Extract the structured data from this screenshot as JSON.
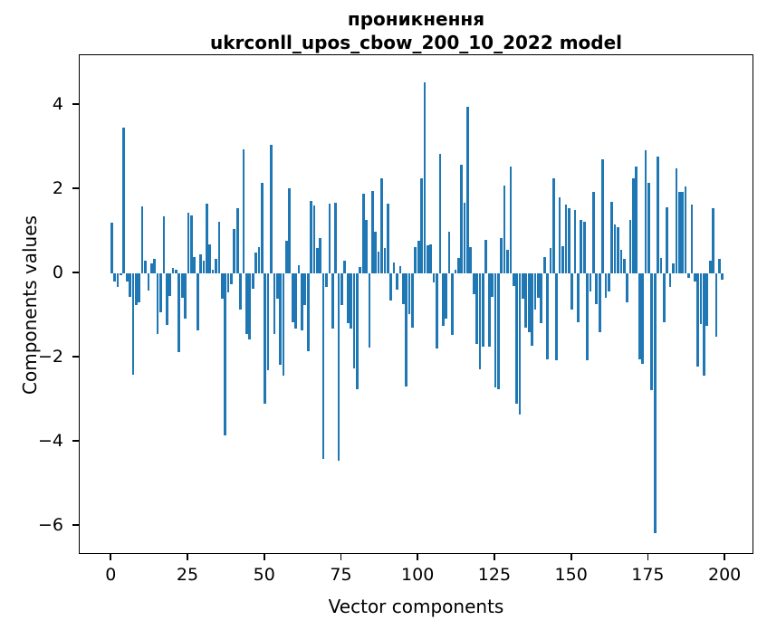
{
  "figure": {
    "title_line1": "проникнення",
    "title_line2": "ukrconll_upos_cbow_200_10_2022 model",
    "xlabel": "Vector components",
    "ylabel": "Components values"
  },
  "chart_data": {
    "type": "bar",
    "title": "проникнення — ukrconll_upos_cbow_200_10_2022 model",
    "xlabel": "Vector components",
    "ylabel": "Components values",
    "bar_color": "#1f77b4",
    "spine_color": "#000000",
    "grid": false,
    "legend": null,
    "x_ticks": [
      0,
      25,
      50,
      75,
      100,
      125,
      150,
      175,
      200
    ],
    "y_ticks": [
      4,
      2,
      0,
      -2,
      -4,
      -6
    ],
    "xlim": [
      -10.4,
      209.4
    ],
    "ylim": [
      -6.69,
      5.19
    ],
    "bar_width": 0.8,
    "x_start_index": 0,
    "values": [
      1.21,
      -0.18,
      -0.31,
      -0.05,
      3.47,
      -0.2,
      -0.55,
      -2.4,
      -0.75,
      -0.68,
      1.6,
      0.31,
      -0.4,
      0.24,
      0.35,
      -1.43,
      -0.93,
      1.35,
      -1.22,
      -0.54,
      0.14,
      0.1,
      -1.86,
      -0.58,
      -1.07,
      1.45,
      1.38,
      0.38,
      -1.35,
      0.45,
      0.3,
      1.65,
      0.7,
      0.08,
      0.35,
      1.22,
      -0.6,
      -3.85,
      -0.45,
      -0.25,
      1.06,
      1.56,
      -0.85,
      2.95,
      -1.43,
      -1.57,
      -0.36,
      0.49,
      0.63,
      2.15,
      -3.1,
      -2.3,
      3.05,
      -1.43,
      -0.6,
      -2.18,
      -2.43,
      0.78,
      2.02,
      -1.15,
      -1.32,
      0.2,
      -1.36,
      -0.75,
      -1.85,
      1.72,
      1.62,
      0.6,
      0.85,
      -4.4,
      -0.33,
      1.67,
      -1.32,
      1.69,
      -4.45,
      -0.75,
      0.3,
      -1.18,
      -1.32,
      -2.25,
      -2.75,
      0.15,
      1.9,
      1.27,
      -1.77,
      1.97,
      1.0,
      0.52,
      2.26,
      0.61,
      1.67,
      -0.65,
      0.26,
      -0.38,
      0.17,
      -0.72,
      -2.68,
      -0.97,
      -1.29,
      0.63,
      0.78,
      2.27,
      4.55,
      0.67,
      0.69,
      -0.22,
      -1.79,
      2.85,
      -1.25,
      -1.07,
      0.99,
      -1.47,
      0.08,
      0.36,
      2.59,
      1.68,
      3.96,
      0.63,
      -0.5,
      -1.68,
      -2.28,
      -1.75,
      0.79,
      -1.73,
      -0.55,
      -2.7,
      -2.75,
      0.85,
      2.09,
      0.56,
      2.54,
      -0.3,
      -3.1,
      -3.35,
      -0.6,
      -1.29,
      -1.4,
      -1.72,
      -0.86,
      -0.58,
      -1.18,
      0.4,
      -2.04,
      0.6,
      2.27,
      -2.07,
      1.81,
      0.65,
      1.63,
      1.55,
      -0.85,
      1.52,
      -1.15,
      1.27,
      1.24,
      -2.07,
      -0.43,
      1.93,
      -0.72,
      -1.4,
      2.71,
      -0.58,
      -0.43,
      1.7,
      1.17,
      1.1,
      0.56,
      0.35,
      -0.68,
      1.27,
      2.27,
      2.54,
      -2.05,
      -2.14,
      2.93,
      2.16,
      -2.78,
      -6.17,
      2.78,
      0.36,
      -1.15,
      1.57,
      -0.33,
      0.25,
      2.5,
      1.95,
      1.93,
      2.07,
      -0.11,
      1.63,
      -0.2,
      -2.22,
      -1.2,
      -2.43,
      -1.25,
      0.3,
      1.56,
      -1.5,
      0.35,
      -0.15
    ]
  }
}
